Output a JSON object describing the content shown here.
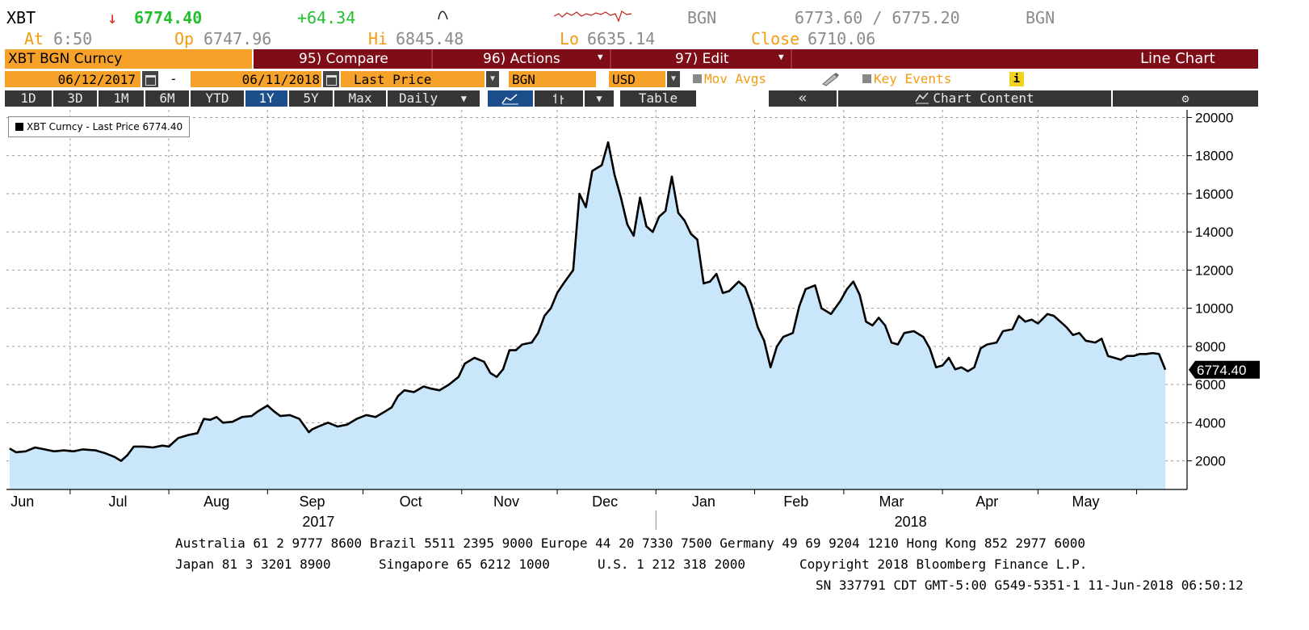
{
  "header": {
    "ticker": "XBT",
    "arrow": "↓",
    "last": "6774.40",
    "change": "+64.34",
    "source1": "BGN",
    "bid_ask": "6773.60 / 6775.20",
    "source2": "BGN",
    "at_label": "At",
    "at_time": "6:50",
    "op_label": "Op",
    "op_value": "6747.96",
    "hi_label": "Hi",
    "hi_value": "6845.48",
    "lo_label": "Lo",
    "lo_value": "6635.14",
    "close_label": "Close",
    "close_value": "6710.06"
  },
  "title_bar": {
    "security": "XBT BGN Curncy",
    "compare": "95) Compare",
    "actions": "96) Actions",
    "edit": "97) Edit",
    "chart_type": "Line Chart"
  },
  "params_bar": {
    "start_date": "06/12/2017",
    "dash": "-",
    "end_date": "06/11/2018",
    "field": "Last Price",
    "source": "BGN",
    "currency": "USD",
    "mov_avgs": "Mov Avgs",
    "key_events": "Key Events",
    "info": "i"
  },
  "toolbar": {
    "ranges": [
      "1D",
      "3D",
      "1M",
      "6M",
      "YTD",
      "1Y",
      "5Y",
      "Max"
    ],
    "active_range": "1Y",
    "frequency": "Daily",
    "table": "Table",
    "back": "«",
    "chart_content": "Chart Content",
    "settings_icon": "gear-icon"
  },
  "legend": {
    "text": "XBT Curncy - Last Price 6774.40"
  },
  "colors": {
    "line": "#000000",
    "fill": "#c9e6fa",
    "grid": "#9a9a9a",
    "orange": "#f6a22a",
    "maroon": "#7f0d18",
    "up": "#22c02c",
    "down": "#e0201c"
  },
  "chart_data": {
    "type": "area",
    "series": [
      {
        "name": "XBT Curncy - Last Price",
        "points": [
          [
            "2017-06-12",
            2650
          ],
          [
            "2017-06-14",
            2450
          ],
          [
            "2017-06-17",
            2500
          ],
          [
            "2017-06-20",
            2700
          ],
          [
            "2017-06-23",
            2600
          ],
          [
            "2017-06-26",
            2500
          ],
          [
            "2017-06-29",
            2550
          ],
          [
            "2017-07-02",
            2500
          ],
          [
            "2017-07-05",
            2600
          ],
          [
            "2017-07-09",
            2550
          ],
          [
            "2017-07-12",
            2400
          ],
          [
            "2017-07-15",
            2200
          ],
          [
            "2017-07-17",
            2000
          ],
          [
            "2017-07-19",
            2300
          ],
          [
            "2017-07-21",
            2750
          ],
          [
            "2017-07-24",
            2750
          ],
          [
            "2017-07-27",
            2700
          ],
          [
            "2017-07-30",
            2800
          ],
          [
            "2017-08-01",
            2750
          ],
          [
            "2017-08-04",
            3200
          ],
          [
            "2017-08-07",
            3350
          ],
          [
            "2017-08-10",
            3450
          ],
          [
            "2017-08-12",
            4200
          ],
          [
            "2017-08-14",
            4150
          ],
          [
            "2017-08-16",
            4300
          ],
          [
            "2017-08-18",
            4000
          ],
          [
            "2017-08-21",
            4050
          ],
          [
            "2017-08-24",
            4300
          ],
          [
            "2017-08-27",
            4350
          ],
          [
            "2017-08-29",
            4600
          ],
          [
            "2017-09-01",
            4900
          ],
          [
            "2017-09-03",
            4600
          ],
          [
            "2017-09-05",
            4350
          ],
          [
            "2017-09-08",
            4400
          ],
          [
            "2017-09-11",
            4200
          ],
          [
            "2017-09-14",
            3500
          ],
          [
            "2017-09-15",
            3650
          ],
          [
            "2017-09-17",
            3800
          ],
          [
            "2017-09-20",
            4000
          ],
          [
            "2017-09-23",
            3800
          ],
          [
            "2017-09-26",
            3900
          ],
          [
            "2017-09-29",
            4200
          ],
          [
            "2017-10-02",
            4400
          ],
          [
            "2017-10-05",
            4300
          ],
          [
            "2017-10-08",
            4600
          ],
          [
            "2017-10-10",
            4800
          ],
          [
            "2017-10-12",
            5400
          ],
          [
            "2017-10-14",
            5700
          ],
          [
            "2017-10-17",
            5600
          ],
          [
            "2017-10-20",
            5900
          ],
          [
            "2017-10-22",
            5800
          ],
          [
            "2017-10-25",
            5700
          ],
          [
            "2017-10-28",
            6000
          ],
          [
            "2017-10-31",
            6400
          ],
          [
            "2017-11-02",
            7100
          ],
          [
            "2017-11-05",
            7400
          ],
          [
            "2017-11-08",
            7200
          ],
          [
            "2017-11-10",
            6600
          ],
          [
            "2017-11-12",
            6400
          ],
          [
            "2017-11-14",
            6800
          ],
          [
            "2017-11-16",
            7800
          ],
          [
            "2017-11-18",
            7800
          ],
          [
            "2017-11-20",
            8100
          ],
          [
            "2017-11-23",
            8200
          ],
          [
            "2017-11-25",
            8700
          ],
          [
            "2017-11-27",
            9600
          ],
          [
            "2017-11-29",
            10000
          ],
          [
            "2017-12-01",
            10800
          ],
          [
            "2017-12-03",
            11300
          ],
          [
            "2017-12-06",
            12000
          ],
          [
            "2017-12-07",
            14000
          ],
          [
            "2017-12-08",
            16000
          ],
          [
            "2017-12-10",
            15300
          ],
          [
            "2017-12-12",
            17200
          ],
          [
            "2017-12-15",
            17500
          ],
          [
            "2017-12-17",
            18700
          ],
          [
            "2017-12-19",
            17000
          ],
          [
            "2017-12-21",
            15800
          ],
          [
            "2017-12-23",
            14400
          ],
          [
            "2017-12-25",
            13800
          ],
          [
            "2017-12-27",
            15800
          ],
          [
            "2017-12-29",
            14300
          ],
          [
            "2017-12-31",
            14000
          ],
          [
            "2018-01-02",
            14800
          ],
          [
            "2018-01-04",
            15100
          ],
          [
            "2018-01-06",
            16900
          ],
          [
            "2018-01-08",
            15000
          ],
          [
            "2018-01-10",
            14600
          ],
          [
            "2018-01-12",
            13900
          ],
          [
            "2018-01-14",
            13600
          ],
          [
            "2018-01-16",
            11300
          ],
          [
            "2018-01-18",
            11400
          ],
          [
            "2018-01-20",
            11800
          ],
          [
            "2018-01-22",
            10800
          ],
          [
            "2018-01-24",
            10900
          ],
          [
            "2018-01-27",
            11400
          ],
          [
            "2018-01-29",
            11100
          ],
          [
            "2018-01-31",
            10200
          ],
          [
            "2018-02-02",
            9000
          ],
          [
            "2018-02-04",
            8300
          ],
          [
            "2018-02-06",
            6900
          ],
          [
            "2018-02-08",
            8000
          ],
          [
            "2018-02-10",
            8500
          ],
          [
            "2018-02-13",
            8700
          ],
          [
            "2018-02-15",
            10100
          ],
          [
            "2018-02-17",
            11000
          ],
          [
            "2018-02-20",
            11200
          ],
          [
            "2018-02-22",
            10000
          ],
          [
            "2018-02-25",
            9700
          ],
          [
            "2018-02-28",
            10400
          ],
          [
            "2018-03-02",
            11000
          ],
          [
            "2018-03-04",
            11400
          ],
          [
            "2018-03-06",
            10700
          ],
          [
            "2018-03-08",
            9300
          ],
          [
            "2018-03-10",
            9100
          ],
          [
            "2018-03-12",
            9500
          ],
          [
            "2018-03-14",
            9100
          ],
          [
            "2018-03-16",
            8200
          ],
          [
            "2018-03-18",
            8100
          ],
          [
            "2018-03-20",
            8700
          ],
          [
            "2018-03-23",
            8800
          ],
          [
            "2018-03-26",
            8500
          ],
          [
            "2018-03-28",
            7900
          ],
          [
            "2018-03-30",
            6900
          ],
          [
            "2018-04-01",
            7000
          ],
          [
            "2018-04-03",
            7400
          ],
          [
            "2018-04-05",
            6800
          ],
          [
            "2018-04-07",
            6900
          ],
          [
            "2018-04-09",
            6700
          ],
          [
            "2018-04-11",
            6900
          ],
          [
            "2018-04-13",
            7900
          ],
          [
            "2018-04-15",
            8100
          ],
          [
            "2018-04-18",
            8200
          ],
          [
            "2018-04-20",
            8800
          ],
          [
            "2018-04-23",
            8900
          ],
          [
            "2018-04-25",
            9600
          ],
          [
            "2018-04-27",
            9300
          ],
          [
            "2018-04-29",
            9400
          ],
          [
            "2018-05-01",
            9200
          ],
          [
            "2018-05-04",
            9700
          ],
          [
            "2018-05-06",
            9600
          ],
          [
            "2018-05-08",
            9300
          ],
          [
            "2018-05-10",
            9000
          ],
          [
            "2018-05-12",
            8600
          ],
          [
            "2018-05-14",
            8700
          ],
          [
            "2018-05-16",
            8300
          ],
          [
            "2018-05-19",
            8200
          ],
          [
            "2018-05-21",
            8400
          ],
          [
            "2018-05-23",
            7500
          ],
          [
            "2018-05-25",
            7400
          ],
          [
            "2018-05-27",
            7300
          ],
          [
            "2018-05-29",
            7500
          ],
          [
            "2018-05-31",
            7500
          ],
          [
            "2018-06-02",
            7600
          ],
          [
            "2018-06-04",
            7600
          ],
          [
            "2018-06-06",
            7650
          ],
          [
            "2018-06-08",
            7600
          ],
          [
            "2018-06-10",
            6774.4
          ]
        ]
      }
    ],
    "ylim": [
      500,
      20400
    ],
    "yticks": [
      2000,
      4000,
      6000,
      8000,
      10000,
      12000,
      14000,
      16000,
      18000,
      20000
    ],
    "ytick_labels": [
      "2000",
      "4000",
      "6000",
      "8000",
      "10000",
      "12000",
      "14000",
      "16000",
      "18000",
      "20000"
    ],
    "x_month_ticks": [
      "2017-06-01",
      "2017-07-01",
      "2017-08-01",
      "2017-09-01",
      "2017-10-01",
      "2017-11-01",
      "2017-12-01",
      "2018-01-01",
      "2018-02-01",
      "2018-03-01",
      "2018-04-01",
      "2018-05-01",
      "2018-06-01"
    ],
    "month_labels": [
      {
        "date": "2017-06-16",
        "label": "Jun"
      },
      {
        "date": "2017-07-16",
        "label": "Jul"
      },
      {
        "date": "2017-08-16",
        "label": "Aug"
      },
      {
        "date": "2017-09-15",
        "label": "Sep"
      },
      {
        "date": "2017-10-16",
        "label": "Oct"
      },
      {
        "date": "2017-11-15",
        "label": "Nov"
      },
      {
        "date": "2017-12-16",
        "label": "Dec"
      },
      {
        "date": "2018-01-16",
        "label": "Jan"
      },
      {
        "date": "2018-02-14",
        "label": "Feb"
      },
      {
        "date": "2018-03-16",
        "label": "Mar"
      },
      {
        "date": "2018-04-15",
        "label": "Apr"
      },
      {
        "date": "2018-05-16",
        "label": "May"
      }
    ],
    "year_labels": [
      {
        "date": "2017-09-17",
        "label": "2017"
      },
      {
        "date": "2018-03-22",
        "label": "2018"
      }
    ],
    "year_divider": "2018-01-01",
    "xlim": [
      "2017-06-11",
      "2018-06-11"
    ],
    "last_value_label": "6774.40",
    "grid": true
  },
  "footer": {
    "line1": "Australia 61 2 9777 8600 Brazil 5511 2395 9000 Europe 44 20 7330 7500 Germany 49 69 9204 1210 Hong Kong 852 2977 6000",
    "line2_japan": "Japan 81 3 3201 8900",
    "line2_singapore": "Singapore 65 6212 1000",
    "line2_us": "U.S. 1 212 318 2000",
    "line2_copyright": "Copyright 2018 Bloomberg Finance L.P.",
    "line3": "SN 337791 CDT  GMT-5:00 G549-5351-1 11-Jun-2018 06:50:12"
  }
}
